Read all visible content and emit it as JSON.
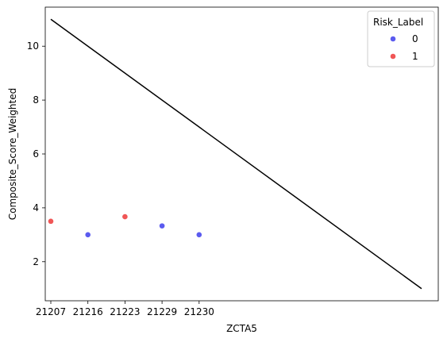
{
  "chart_data": {
    "type": "scatter",
    "title": "",
    "xlabel": "ZCTA5",
    "ylabel": "Composite_Score_Weighted",
    "x_categories": [
      "21207",
      "21216",
      "21223",
      "21229",
      "21230"
    ],
    "xlim": [
      -0.15,
      10.45
    ],
    "ylim": [
      0.55,
      11.45
    ],
    "y_ticks": [
      2,
      4,
      6,
      8,
      10
    ],
    "grid": false,
    "legend": {
      "title": "Risk_Label",
      "placement": "top-right",
      "entries": [
        {
          "label": "0",
          "color": "#5b5bef"
        },
        {
          "label": "1",
          "color": "#f05656"
        }
      ]
    },
    "points": [
      {
        "x": "21207",
        "y": 3.5,
        "label": "1"
      },
      {
        "x": "21216",
        "y": 3.0,
        "label": "0"
      },
      {
        "x": "21223",
        "y": 3.67,
        "label": "1"
      },
      {
        "x": "21229",
        "y": 3.33,
        "label": "0"
      },
      {
        "x": "21230",
        "y": 3.0,
        "label": "0"
      }
    ],
    "line": {
      "color": "#000000",
      "x": [
        0,
        10
      ],
      "y": [
        11,
        1
      ]
    }
  }
}
